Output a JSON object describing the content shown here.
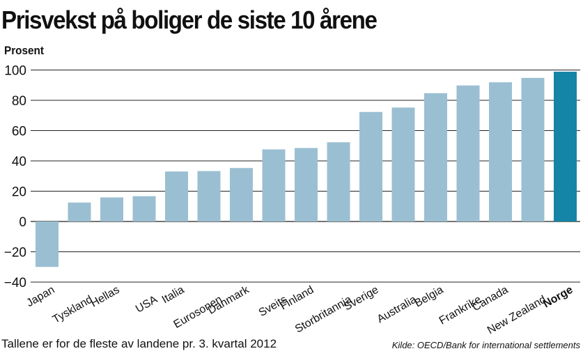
{
  "title": "Prisvekst på boliger de siste 10 årene",
  "footnote": "Tallene er for de fleste av landene pr. 3. kvartal 2012",
  "source": "Kilde: OECD/Bank for international settlements",
  "colors": {
    "bar": "#9bbfd2",
    "highlight": "#1485a6",
    "grid": "#222222"
  },
  "chart_data": {
    "type": "bar",
    "title": "Prisvekst på boliger de siste 10 årene",
    "xlabel": "",
    "ylabel": "Prosent",
    "ylim": [
      -40,
      100
    ],
    "yticks": [
      -40,
      -20,
      0,
      20,
      40,
      60,
      80,
      100
    ],
    "grid": true,
    "categories": [
      "Japan",
      "Tyskland",
      "Hellas",
      "USA",
      "Italia",
      "Eurosonen",
      "Danmark",
      "Sveits",
      "Finland",
      "Storbritannia",
      "Sverige",
      "Australia",
      "Belgia",
      "Frankrike",
      "Canada",
      "New Zealand",
      "Norge"
    ],
    "values": [
      -30,
      12.5,
      15.9,
      16.7,
      33,
      33.3,
      35.3,
      47.6,
      48.5,
      52.3,
      72.3,
      75.2,
      84.7,
      89.8,
      91.9,
      94.8,
      98.9
    ],
    "highlight": "Norge"
  }
}
